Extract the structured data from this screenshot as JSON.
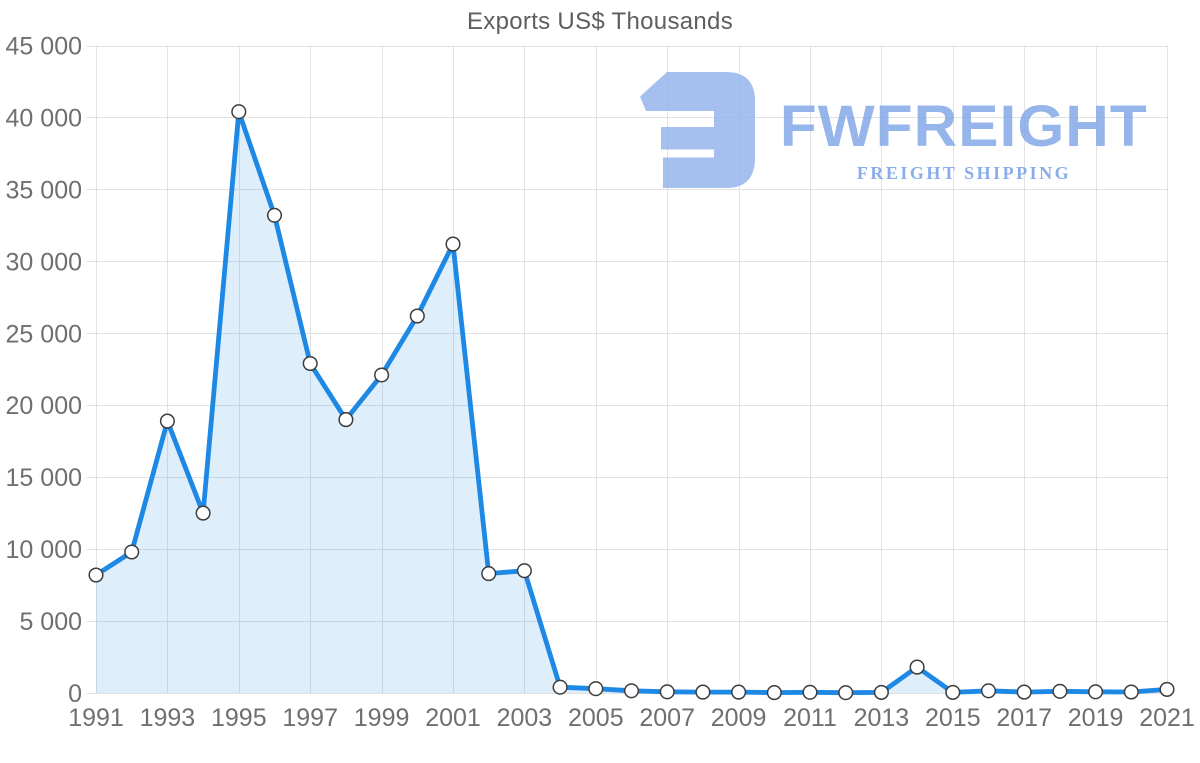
{
  "page": {
    "background": "#ffffff"
  },
  "chart_data": {
    "type": "area",
    "title": "Exports US$ Thousands",
    "xlabel": "",
    "ylabel": "",
    "x": [
      1991,
      1992,
      1993,
      1994,
      1995,
      1996,
      1997,
      1998,
      1999,
      2000,
      2001,
      2002,
      2003,
      2004,
      2005,
      2006,
      2007,
      2008,
      2009,
      2010,
      2011,
      2012,
      2013,
      2014,
      2015,
      2016,
      2017,
      2018,
      2019,
      2020,
      2021
    ],
    "values": [
      8200,
      9800,
      18900,
      12500,
      40400,
      33200,
      22900,
      19000,
      22100,
      26200,
      31200,
      8300,
      8500,
      400,
      300,
      150,
      80,
      60,
      60,
      30,
      50,
      20,
      40,
      1800,
      40,
      150,
      60,
      120,
      80,
      70,
      250
    ],
    "ylim": [
      0,
      45000
    ],
    "y_tick_interval": 5000,
    "y_tick_values": [
      0,
      5000,
      10000,
      15000,
      20000,
      25000,
      30000,
      35000,
      40000,
      45000
    ],
    "y_tick_labels": [
      "0",
      "5 000",
      "10 000",
      "15 000",
      "20 000",
      "25 000",
      "30 000",
      "35 000",
      "40 000",
      "45 000"
    ],
    "x_tick_years": [
      1991,
      1993,
      1995,
      1997,
      1999,
      2001,
      2003,
      2005,
      2007,
      2009,
      2011,
      2013,
      2015,
      2017,
      2019,
      2021
    ],
    "x_tick_labels": [
      "1991",
      "1993",
      "1995",
      "1997",
      "1999",
      "2001",
      "2003",
      "2005",
      "2007",
      "2009",
      "2011",
      "2013",
      "2015",
      "2017",
      "2019",
      "2021"
    ],
    "grid": true,
    "legend": "none",
    "colors": {
      "line": "#1e88e5",
      "fill": "rgba(30,136,229,0.14)",
      "marker_fill": "#ffffff",
      "marker_stroke": "#3d3d3d",
      "gridline": "#e2e2e2",
      "axis_label": "#6f6f6f",
      "title": "#5e5e5e"
    }
  },
  "logo": {
    "wordmark": "FWFREIGHT",
    "tagline": "FREIGHT SHIPPING",
    "icon": "fwfreight-f-icon",
    "color": "#9cb8eb"
  }
}
